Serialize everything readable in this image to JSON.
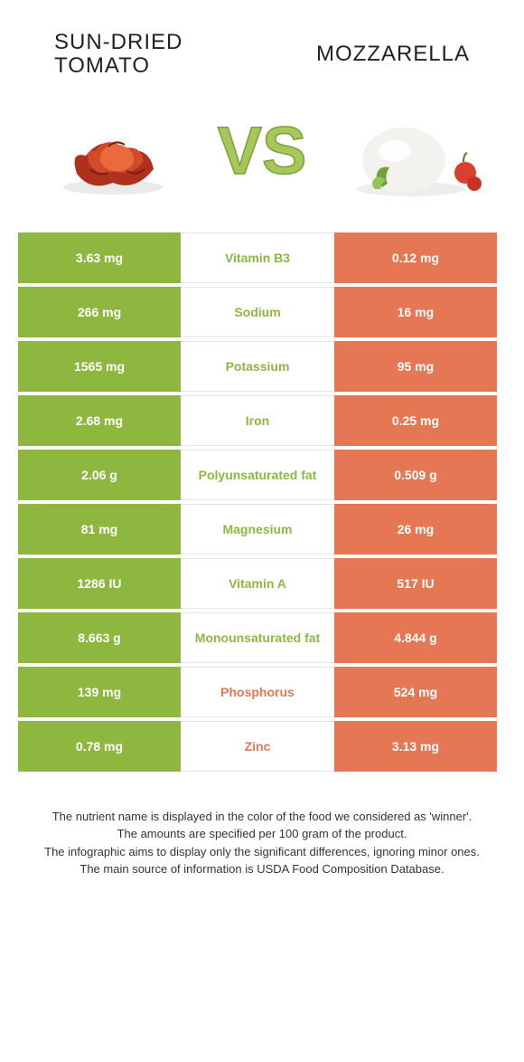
{
  "colors": {
    "green": "#8eb740",
    "orange": "#e57754",
    "gray_cell": "#d9d9d9",
    "row_border": "#e5e5e5",
    "text_dark": "#333333",
    "white": "#ffffff",
    "vs_fill": "#a6c75a",
    "vs_stroke": "#8eb740"
  },
  "titles": {
    "left_line1": "SUN-DRIED",
    "left_line2": "TOMATO",
    "right": "MOZZARELLA"
  },
  "vs_text": "VS",
  "table": {
    "rows": [
      {
        "label": "Vitamin B3",
        "left": "3.63 mg",
        "right": "0.12 mg",
        "winner": "left"
      },
      {
        "label": "Sodium",
        "left": "266 mg",
        "right": "16 mg",
        "winner": "left"
      },
      {
        "label": "Potassium",
        "left": "1565 mg",
        "right": "95 mg",
        "winner": "left"
      },
      {
        "label": "Iron",
        "left": "2.68 mg",
        "right": "0.25 mg",
        "winner": "left"
      },
      {
        "label": "Polyunsaturated fat",
        "left": "2.06 g",
        "right": "0.509 g",
        "winner": "left"
      },
      {
        "label": "Magnesium",
        "left": "81 mg",
        "right": "26 mg",
        "winner": "left"
      },
      {
        "label": "Vitamin A",
        "left": "1286 IU",
        "right": "517 IU",
        "winner": "left"
      },
      {
        "label": "Monounsaturated fat",
        "left": "8.663 g",
        "right": "4.844 g",
        "winner": "left"
      },
      {
        "label": "Phosphorus",
        "left": "139 mg",
        "right": "524 mg",
        "winner": "right"
      },
      {
        "label": "Zinc",
        "left": "0.78 mg",
        "right": "3.13 mg",
        "winner": "right"
      }
    ]
  },
  "footer": {
    "line1": "The nutrient name is displayed in the color of the food we considered as 'winner'.",
    "line2": "The amounts are specified per 100 gram of the product.",
    "line3": "The infographic aims to display only the significant differences, ignoring minor ones.",
    "line4": "The main source of information is USDA Food Composition Database."
  }
}
